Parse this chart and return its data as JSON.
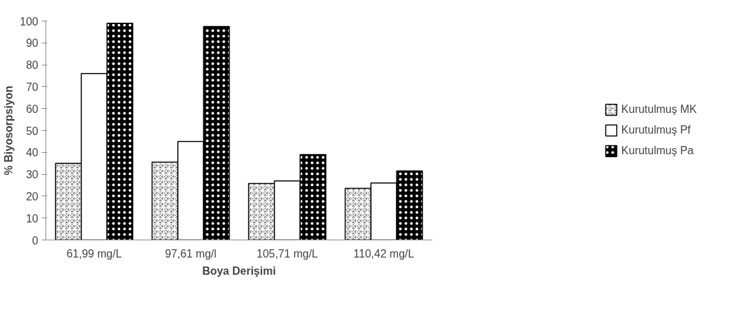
{
  "chart_data": {
    "type": "bar",
    "xlabel": "Boya Derişimi",
    "ylabel": "% Biyosorpsiyon",
    "categories": [
      "61,99 mg/L",
      "97,61 mg/l",
      "105,71 mg/L",
      "110,42 mg/L"
    ],
    "series": [
      {
        "name": "Kurutulmuş MK",
        "color": "#808080",
        "values": [
          35,
          35.5,
          25.8,
          23.6
        ]
      },
      {
        "name": "Kurutulmuş Pf",
        "color": "#ffffff",
        "values": [
          76,
          45,
          27,
          26
        ]
      },
      {
        "name": "Kurutulmuş Pa",
        "color": "#000000",
        "values": [
          99,
          97.5,
          39,
          31.5
        ]
      }
    ],
    "ylim": [
      0,
      100
    ],
    "yticks": [
      0,
      10,
      20,
      30,
      40,
      50,
      60,
      70,
      80,
      90,
      100
    ],
    "grid": false,
    "legend": "right"
  }
}
